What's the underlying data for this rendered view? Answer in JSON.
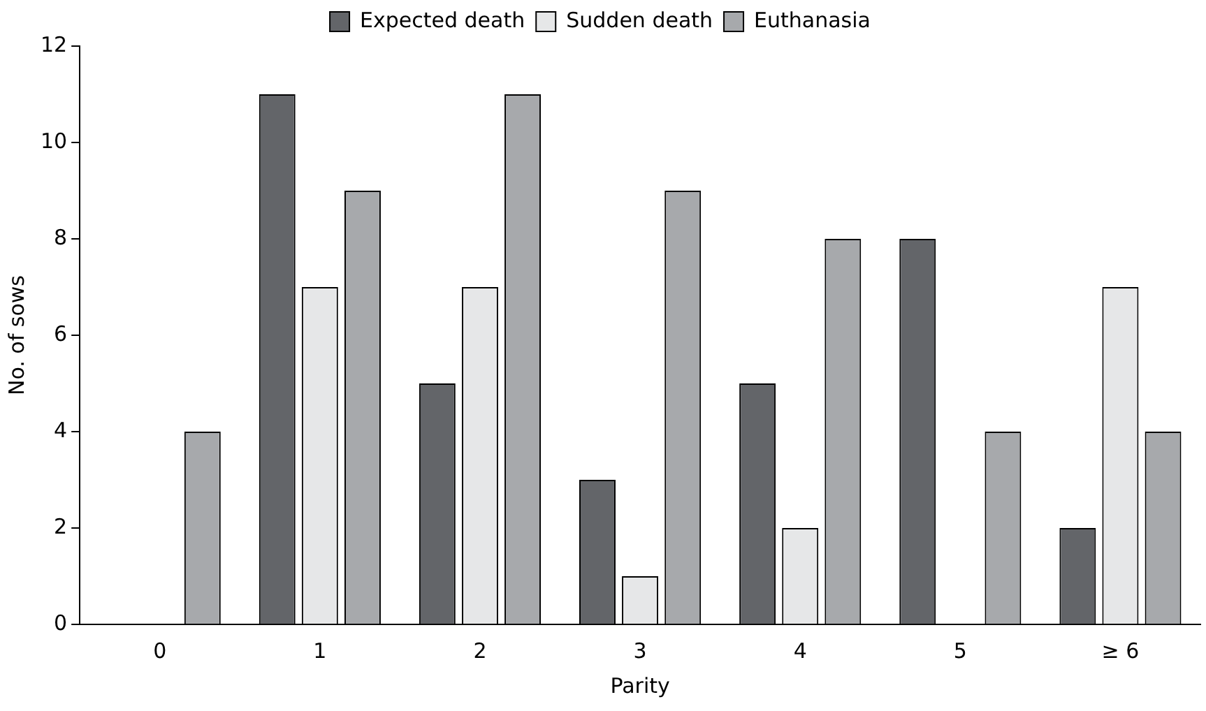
{
  "chart_data": {
    "type": "bar",
    "xlabel": "Parity",
    "ylabel": "No. of sows",
    "categories": [
      "0",
      "1",
      "2",
      "3",
      "4",
      "5",
      "≥ 6"
    ],
    "series": [
      {
        "name": "Expected death",
        "color": "#636569",
        "values": [
          0,
          11,
          5,
          3,
          5,
          8,
          2
        ]
      },
      {
        "name": "Sudden death",
        "color": "#e6e7e8",
        "values": [
          0,
          7,
          7,
          1,
          2,
          0,
          7
        ]
      },
      {
        "name": "Euthanasia",
        "color": "#a7a9ac",
        "values": [
          4,
          9,
          11,
          9,
          8,
          4,
          4
        ]
      }
    ],
    "ylim": [
      0,
      12
    ],
    "yticks": [
      0,
      2,
      4,
      6,
      8,
      10,
      12
    ],
    "grid": false,
    "legend": "top"
  }
}
